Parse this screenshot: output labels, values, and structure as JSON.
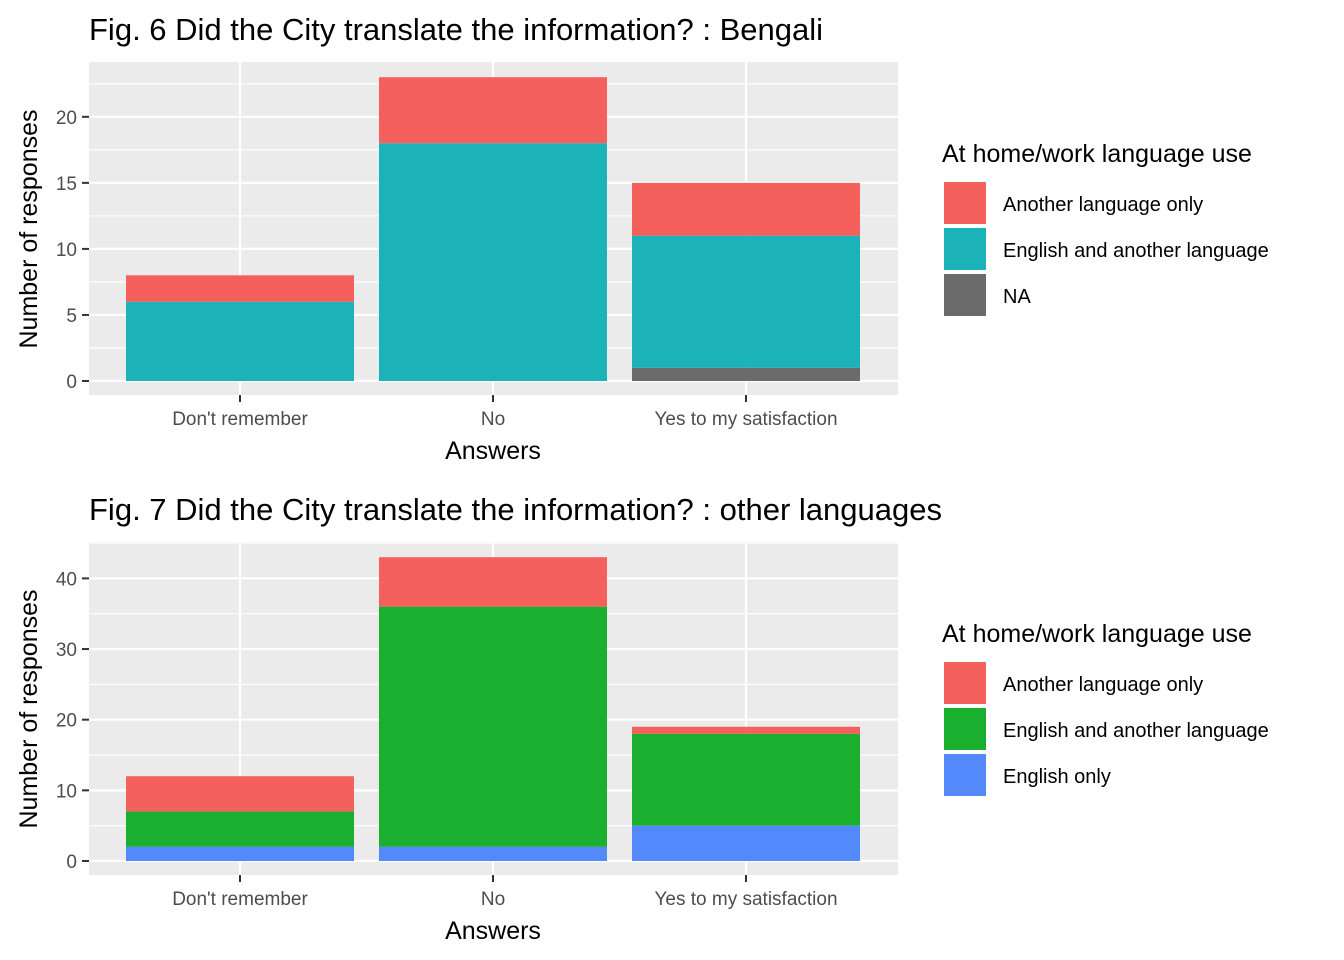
{
  "chart_data": [
    {
      "type": "bar",
      "stacked": true,
      "title": "Fig. 6 Did the City translate the information? : Bengali",
      "xlabel": "Answers",
      "ylabel": "Number of responses",
      "categories": [
        "Don't remember",
        "No",
        "Yes to my satisfaction"
      ],
      "ylim": [
        0,
        24.15
      ],
      "yticks": [
        0,
        5,
        10,
        15,
        20
      ],
      "grid": true,
      "legend_title": "At home/work language use",
      "legend_position": "right",
      "series": [
        {
          "name": "NA",
          "color": "#6b6b6b",
          "values": [
            0,
            0,
            1
          ]
        },
        {
          "name": "English and another language",
          "color": "#1bb3b8",
          "values": [
            6,
            18,
            10
          ]
        },
        {
          "name": "Another language only",
          "color": "#f4605c",
          "values": [
            2,
            5,
            4
          ]
        }
      ],
      "legend_order": [
        "Another language only",
        "English and another language",
        "NA"
      ]
    },
    {
      "type": "bar",
      "stacked": true,
      "title": "Fig. 7 Did the City translate the information? : other languages",
      "xlabel": "Answers",
      "ylabel": "Number of responses",
      "categories": [
        "Don't remember",
        "No",
        "Yes to my satisfaction"
      ],
      "ylim": [
        0,
        45.15
      ],
      "yticks": [
        0,
        10,
        20,
        30,
        40
      ],
      "grid": true,
      "legend_title": "At home/work language use",
      "legend_position": "right",
      "series": [
        {
          "name": "English only",
          "color": "#5489fb",
          "values": [
            2,
            2,
            5
          ]
        },
        {
          "name": "English and another language",
          "color": "#1aaf2f",
          "values": [
            5,
            34,
            13
          ]
        },
        {
          "name": "Another language only",
          "color": "#f4605c",
          "values": [
            5,
            7,
            1
          ]
        }
      ],
      "legend_order": [
        "Another language only",
        "English and another language",
        "English only"
      ]
    }
  ]
}
